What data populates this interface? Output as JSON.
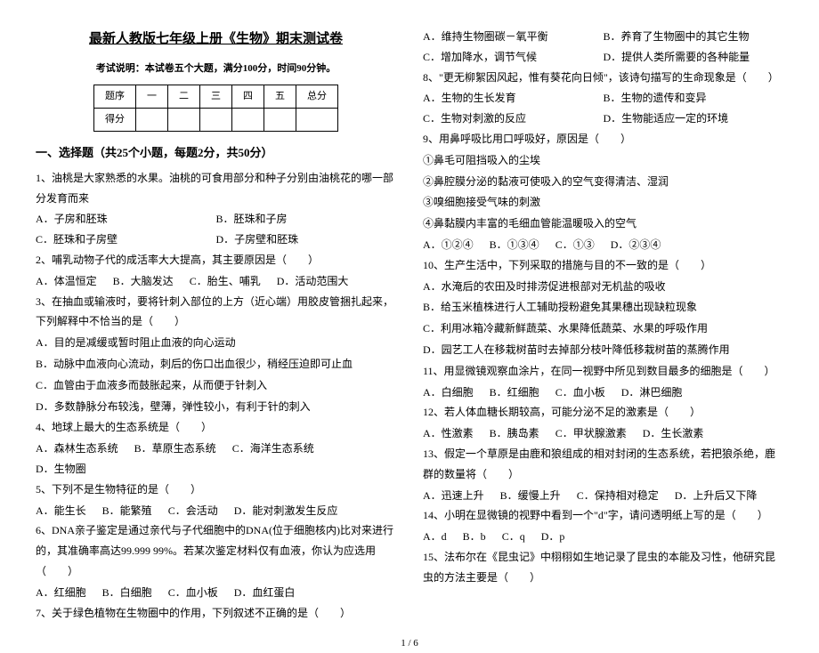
{
  "title": "最新人教版七年级上册《生物》期末测试卷",
  "subtitle": "考试说明：本试卷五个大题，满分100分，时间90分钟。",
  "table": {
    "r1": [
      "题序",
      "一",
      "二",
      "三",
      "四",
      "五",
      "总分"
    ],
    "r2": [
      "得分",
      "",
      "",
      "",
      "",
      "",
      ""
    ]
  },
  "section1": "一、选择题（共25个小题，每题2分，共50分）",
  "left": {
    "q1": "1、油桃是大家熟悉的水果。油桃的可食用部分和种子分别由油桃花的哪一部分发育而来",
    "q1a": "A．子房和胚珠",
    "q1b": "B．胚珠和子房",
    "q1c": "C．胚珠和子房壁",
    "q1d": "D．子房壁和胚珠",
    "q2": "2、哺乳动物子代的成活率大大提高，其主要原因是（　　）",
    "q2a": "A．体温恒定",
    "q2b": "B．大脑发达",
    "q2c": "C．胎生、哺乳",
    "q2d": "D．活动范围大",
    "q3": "3、在抽血或输液时，要将针刺入部位的上方（近心端）用胶皮管捆扎起来，下列解释中不恰当的是（　　）",
    "q3a": "A．目的是减缓或暂时阻止血液的向心运动",
    "q3b": "B．动脉中血液向心流动，刺后的伤口出血很少，稍经压迫即可止血",
    "q3c": "C．血管由于血液多而鼓胀起来，从而便于针刺入",
    "q3d": "D．多数静脉分布较浅，壁薄，弹性较小，有利于针的刺入",
    "q4": "4、地球上最大的生态系统是（　　）",
    "q4a": "A．森林生态系统",
    "q4b": "B．草原生态系统",
    "q4c": "C．海洋生态系统",
    "q4d": "D．生物圈",
    "q5": "5、下列不是生物特征的是（　　）",
    "q5a": "A．能生长",
    "q5b": "B．能繁殖",
    "q5c": "C．会活动",
    "q5d": "D．能对刺激发生反应",
    "q6": "6、DNA亲子鉴定是通过亲代与子代细胞中的DNA(位于细胞核内)比对来进行的，其准确率高达99.999 99%。若某次鉴定材料仅有血液，你认为应选用（　　）",
    "q6a": "A．红细胞",
    "q6b": "B．白细胞",
    "q6c": "C．血小板",
    "q6d": "D．血红蛋白",
    "q7": "7、关于绿色植物在生物圈中的作用，下列叙述不正确的是（　　）"
  },
  "right": {
    "q7a": "A．维持生物圈碳－氧平衡",
    "q7b": "B．养育了生物圈中的其它生物",
    "q7c": "C．增加降水，调节气候",
    "q7d": "D．提供人类所需要的各种能量",
    "q8": "8、\"更无柳絮因风起，惟有葵花向日倾\"，该诗句描写的生命现象是（　　）",
    "q8a": "A．生物的生长发育",
    "q8b": "B．生物的遗传和变异",
    "q8c": "C．生物对刺激的反应",
    "q8d": "D．生物能适应一定的环境",
    "q9": "9、用鼻呼吸比用口呼吸好，原因是（　　）",
    "q9_1": "①鼻毛可阻挡吸入的尘埃",
    "q9_2": "②鼻腔膜分泌的黏液可使吸入的空气变得清洁、湿润",
    "q9_3": "③嗅细胞接受气味的刺激",
    "q9_4": "④鼻黏膜内丰富的毛细血管能温暖吸入的空气",
    "q9a": "A．①②④",
    "q9b": "B．①③④",
    "q9c": "C．①③",
    "q9d": "D．②③④",
    "q10": "10、生产生活中，下列采取的措施与目的不一致的是（　　）",
    "q10a": "A．水淹后的农田及时排涝促进根部对无机盐的吸收",
    "q10b": "B．给玉米植株进行人工辅助授粉避免其果穗出现缺粒现象",
    "q10c": "C．利用冰箱冷藏新鲜蔬菜、水果降低蔬菜、水果的呼吸作用",
    "q10d": "D．园艺工人在移栽树苗时去掉部分枝叶降低移栽树苗的蒸腾作用",
    "q11": "11、用显微镜观察血涂片，在同一视野中所见到数目最多的细胞是（　　）",
    "q11a": "A．白细胞",
    "q11b": "B．红细胞",
    "q11c": "C．血小板",
    "q11d": "D．淋巴细胞",
    "q12": "12、若人体血糖长期较高，可能分泌不足的激素是（　　）",
    "q12a": "A．性激素",
    "q12b": "B．胰岛素",
    "q12c": "C．甲状腺激素",
    "q12d": "D．生长激素",
    "q13": "13、假定一个草原是由鹿和狼组成的相对封闭的生态系统，若把狼杀绝，鹿群的数量将（　　）",
    "q13a": "A．迅速上升",
    "q13b": "B．缓慢上升",
    "q13c": "C．保持相对稳定",
    "q13d": "D．上升后又下降",
    "q14": "14、小明在显微镜的视野中看到一个\"d\"字，请问透明纸上写的是（　　）",
    "q14a": "A．d",
    "q14b": "B．b",
    "q14c": "C．q",
    "q14d": "D．p",
    "q15": "15、法布尔在《昆虫记》中栩栩如生地记录了昆虫的本能及习性，他研究昆虫的方法主要是（　　）"
  },
  "footer": "1 / 6"
}
